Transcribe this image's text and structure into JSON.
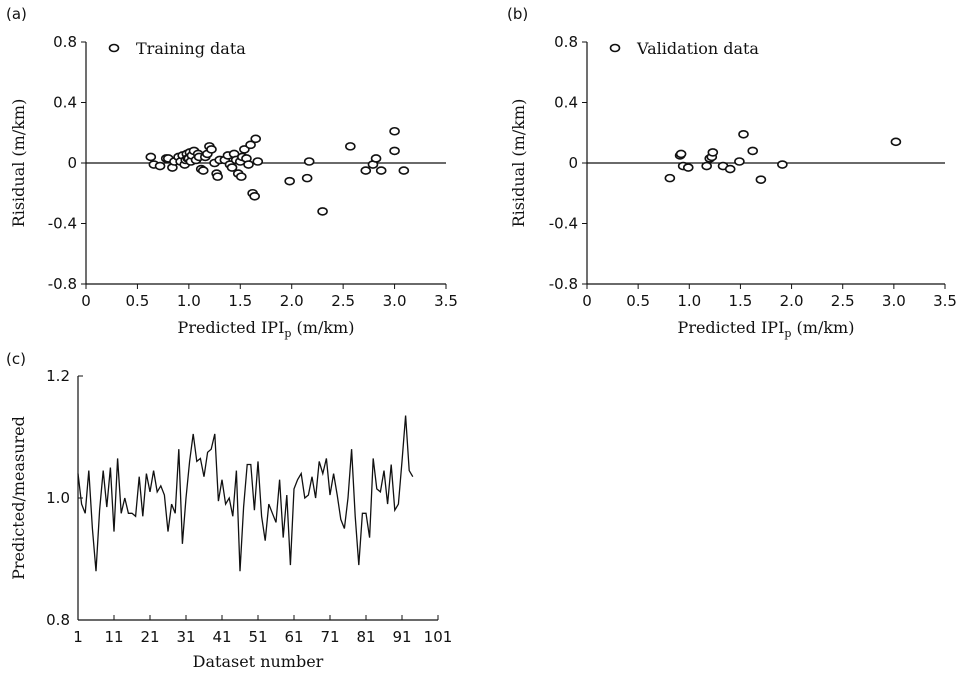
{
  "chart_data": [
    {
      "panel_label": "(a)",
      "type": "scatter",
      "legend": "Training data",
      "legend_position": "top-left",
      "xlabel": "Predicted IPI",
      "xlabel_sub": "p",
      "xlabel_unit": " (m/km)",
      "ylabel": "Risidual (m/km)",
      "xlim": [
        0,
        3.5
      ],
      "ylim": [
        -0.8,
        0.8
      ],
      "x_ticks": [
        "0",
        "0.5",
        "1.0",
        "1.5",
        "2.0",
        "2.5",
        "3.0",
        "3.5"
      ],
      "y_ticks": [
        "-0.8",
        "-0.4",
        "0",
        "0.4",
        "0.8"
      ],
      "reference_line_y": 0,
      "points": [
        [
          0.63,
          0.04
        ],
        [
          0.66,
          -0.01
        ],
        [
          0.72,
          -0.02
        ],
        [
          0.78,
          0.03
        ],
        [
          0.8,
          0.03
        ],
        [
          0.84,
          -0.03
        ],
        [
          0.86,
          0.01
        ],
        [
          0.9,
          0.04
        ],
        [
          0.92,
          0.01
        ],
        [
          0.94,
          0.05
        ],
        [
          0.96,
          -0.01
        ],
        [
          0.97,
          0.02
        ],
        [
          0.98,
          0.06
        ],
        [
          0.99,
          0.03
        ],
        [
          1.0,
          0.03
        ],
        [
          1.01,
          0.07
        ],
        [
          1.02,
          0.01
        ],
        [
          1.03,
          0.05
        ],
        [
          1.05,
          0.08
        ],
        [
          1.07,
          0.02
        ],
        [
          1.09,
          0.06
        ],
        [
          1.1,
          0.04
        ],
        [
          1.12,
          -0.04
        ],
        [
          1.14,
          -0.05
        ],
        [
          1.16,
          0.04
        ],
        [
          1.18,
          0.06
        ],
        [
          1.2,
          0.11
        ],
        [
          1.22,
          0.09
        ],
        [
          1.25,
          0.0
        ],
        [
          1.27,
          -0.07
        ],
        [
          1.28,
          -0.09
        ],
        [
          1.3,
          0.02
        ],
        [
          1.35,
          0.02
        ],
        [
          1.38,
          0.05
        ],
        [
          1.4,
          -0.01
        ],
        [
          1.42,
          -0.03
        ],
        [
          1.44,
          0.06
        ],
        [
          1.46,
          0.02
        ],
        [
          1.48,
          -0.07
        ],
        [
          1.5,
          0.01
        ],
        [
          1.51,
          -0.09
        ],
        [
          1.52,
          0.04
        ],
        [
          1.54,
          0.09
        ],
        [
          1.56,
          0.03
        ],
        [
          1.58,
          -0.01
        ],
        [
          1.6,
          0.12
        ],
        [
          1.62,
          -0.2
        ],
        [
          1.64,
          -0.22
        ],
        [
          1.65,
          0.16
        ],
        [
          1.67,
          0.01
        ],
        [
          1.98,
          -0.12
        ],
        [
          2.17,
          0.01
        ],
        [
          2.15,
          -0.1
        ],
        [
          2.3,
          -0.32
        ],
        [
          2.57,
          0.11
        ],
        [
          2.72,
          -0.05
        ],
        [
          2.79,
          -0.01
        ],
        [
          2.82,
          0.03
        ],
        [
          2.87,
          -0.05
        ],
        [
          3.0,
          0.08
        ],
        [
          3.0,
          0.21
        ],
        [
          3.09,
          -0.05
        ]
      ]
    },
    {
      "panel_label": "(b)",
      "type": "scatter",
      "legend": "Validation data",
      "legend_position": "top-left",
      "xlabel": "Predicted IPI",
      "xlabel_sub": "p",
      "xlabel_unit": " (m/km)",
      "ylabel": "Risidual (m/km)",
      "xlim": [
        0,
        3.5
      ],
      "ylim": [
        -0.8,
        0.8
      ],
      "x_ticks": [
        "0",
        "0.5",
        "1.0",
        "1.5",
        "2.0",
        "2.5",
        "3.0",
        "3.5"
      ],
      "y_ticks": [
        "-0.8",
        "-0.4",
        "0",
        "0.4",
        "0.8"
      ],
      "reference_line_y": 0,
      "points": [
        [
          0.81,
          -0.1
        ],
        [
          0.91,
          0.05
        ],
        [
          0.92,
          0.06
        ],
        [
          0.94,
          -0.02
        ],
        [
          0.99,
          -0.03
        ],
        [
          1.17,
          -0.02
        ],
        [
          1.2,
          0.03
        ],
        [
          1.22,
          0.04
        ],
        [
          1.23,
          0.07
        ],
        [
          1.33,
          -0.02
        ],
        [
          1.4,
          -0.04
        ],
        [
          1.49,
          0.01
        ],
        [
          1.53,
          0.19
        ],
        [
          1.62,
          0.08
        ],
        [
          1.7,
          -0.11
        ],
        [
          1.91,
          -0.01
        ],
        [
          3.02,
          0.14
        ]
      ]
    },
    {
      "panel_label": "(c)",
      "type": "line",
      "xlabel": "Dataset number",
      "ylabel": "Predicted/measured",
      "xlim": [
        1,
        101
      ],
      "ylim": [
        0.8,
        1.2
      ],
      "x_ticks": [
        "1",
        "11",
        "21",
        "31",
        "41",
        "51",
        "61",
        "71",
        "81",
        "91",
        "101"
      ],
      "y_ticks": [
        "0.8",
        "1.0",
        "1.2"
      ],
      "x_start": 1,
      "values": [
        1.04,
        0.99,
        0.975,
        1.045,
        0.95,
        0.88,
        0.98,
        1.045,
        0.985,
        1.05,
        0.945,
        1.065,
        0.975,
        1.0,
        0.975,
        0.975,
        0.97,
        1.035,
        0.97,
        1.04,
        1.01,
        1.045,
        1.01,
        1.02,
        1.005,
        0.945,
        0.99,
        0.975,
        1.08,
        0.925,
        1.0,
        1.06,
        1.105,
        1.06,
        1.065,
        1.035,
        1.075,
        1.08,
        1.105,
        0.995,
        1.03,
        0.99,
        1.0,
        0.97,
        1.045,
        0.88,
        0.985,
        1.055,
        1.055,
        0.98,
        1.06,
        0.97,
        0.93,
        0.99,
        0.975,
        0.96,
        1.03,
        0.935,
        1.005,
        0.89,
        1.015,
        1.03,
        1.04,
        1.0,
        1.005,
        1.035,
        1.0,
        1.06,
        1.04,
        1.065,
        1.005,
        1.04,
        1.005,
        0.965,
        0.95,
        1.0,
        1.08,
        0.97,
        0.89,
        0.975,
        0.975,
        0.935,
        1.065,
        1.015,
        1.01,
        1.045,
        0.99,
        1.055,
        0.98,
        0.99,
        1.06,
        1.135,
        1.045,
        1.035
      ]
    }
  ]
}
